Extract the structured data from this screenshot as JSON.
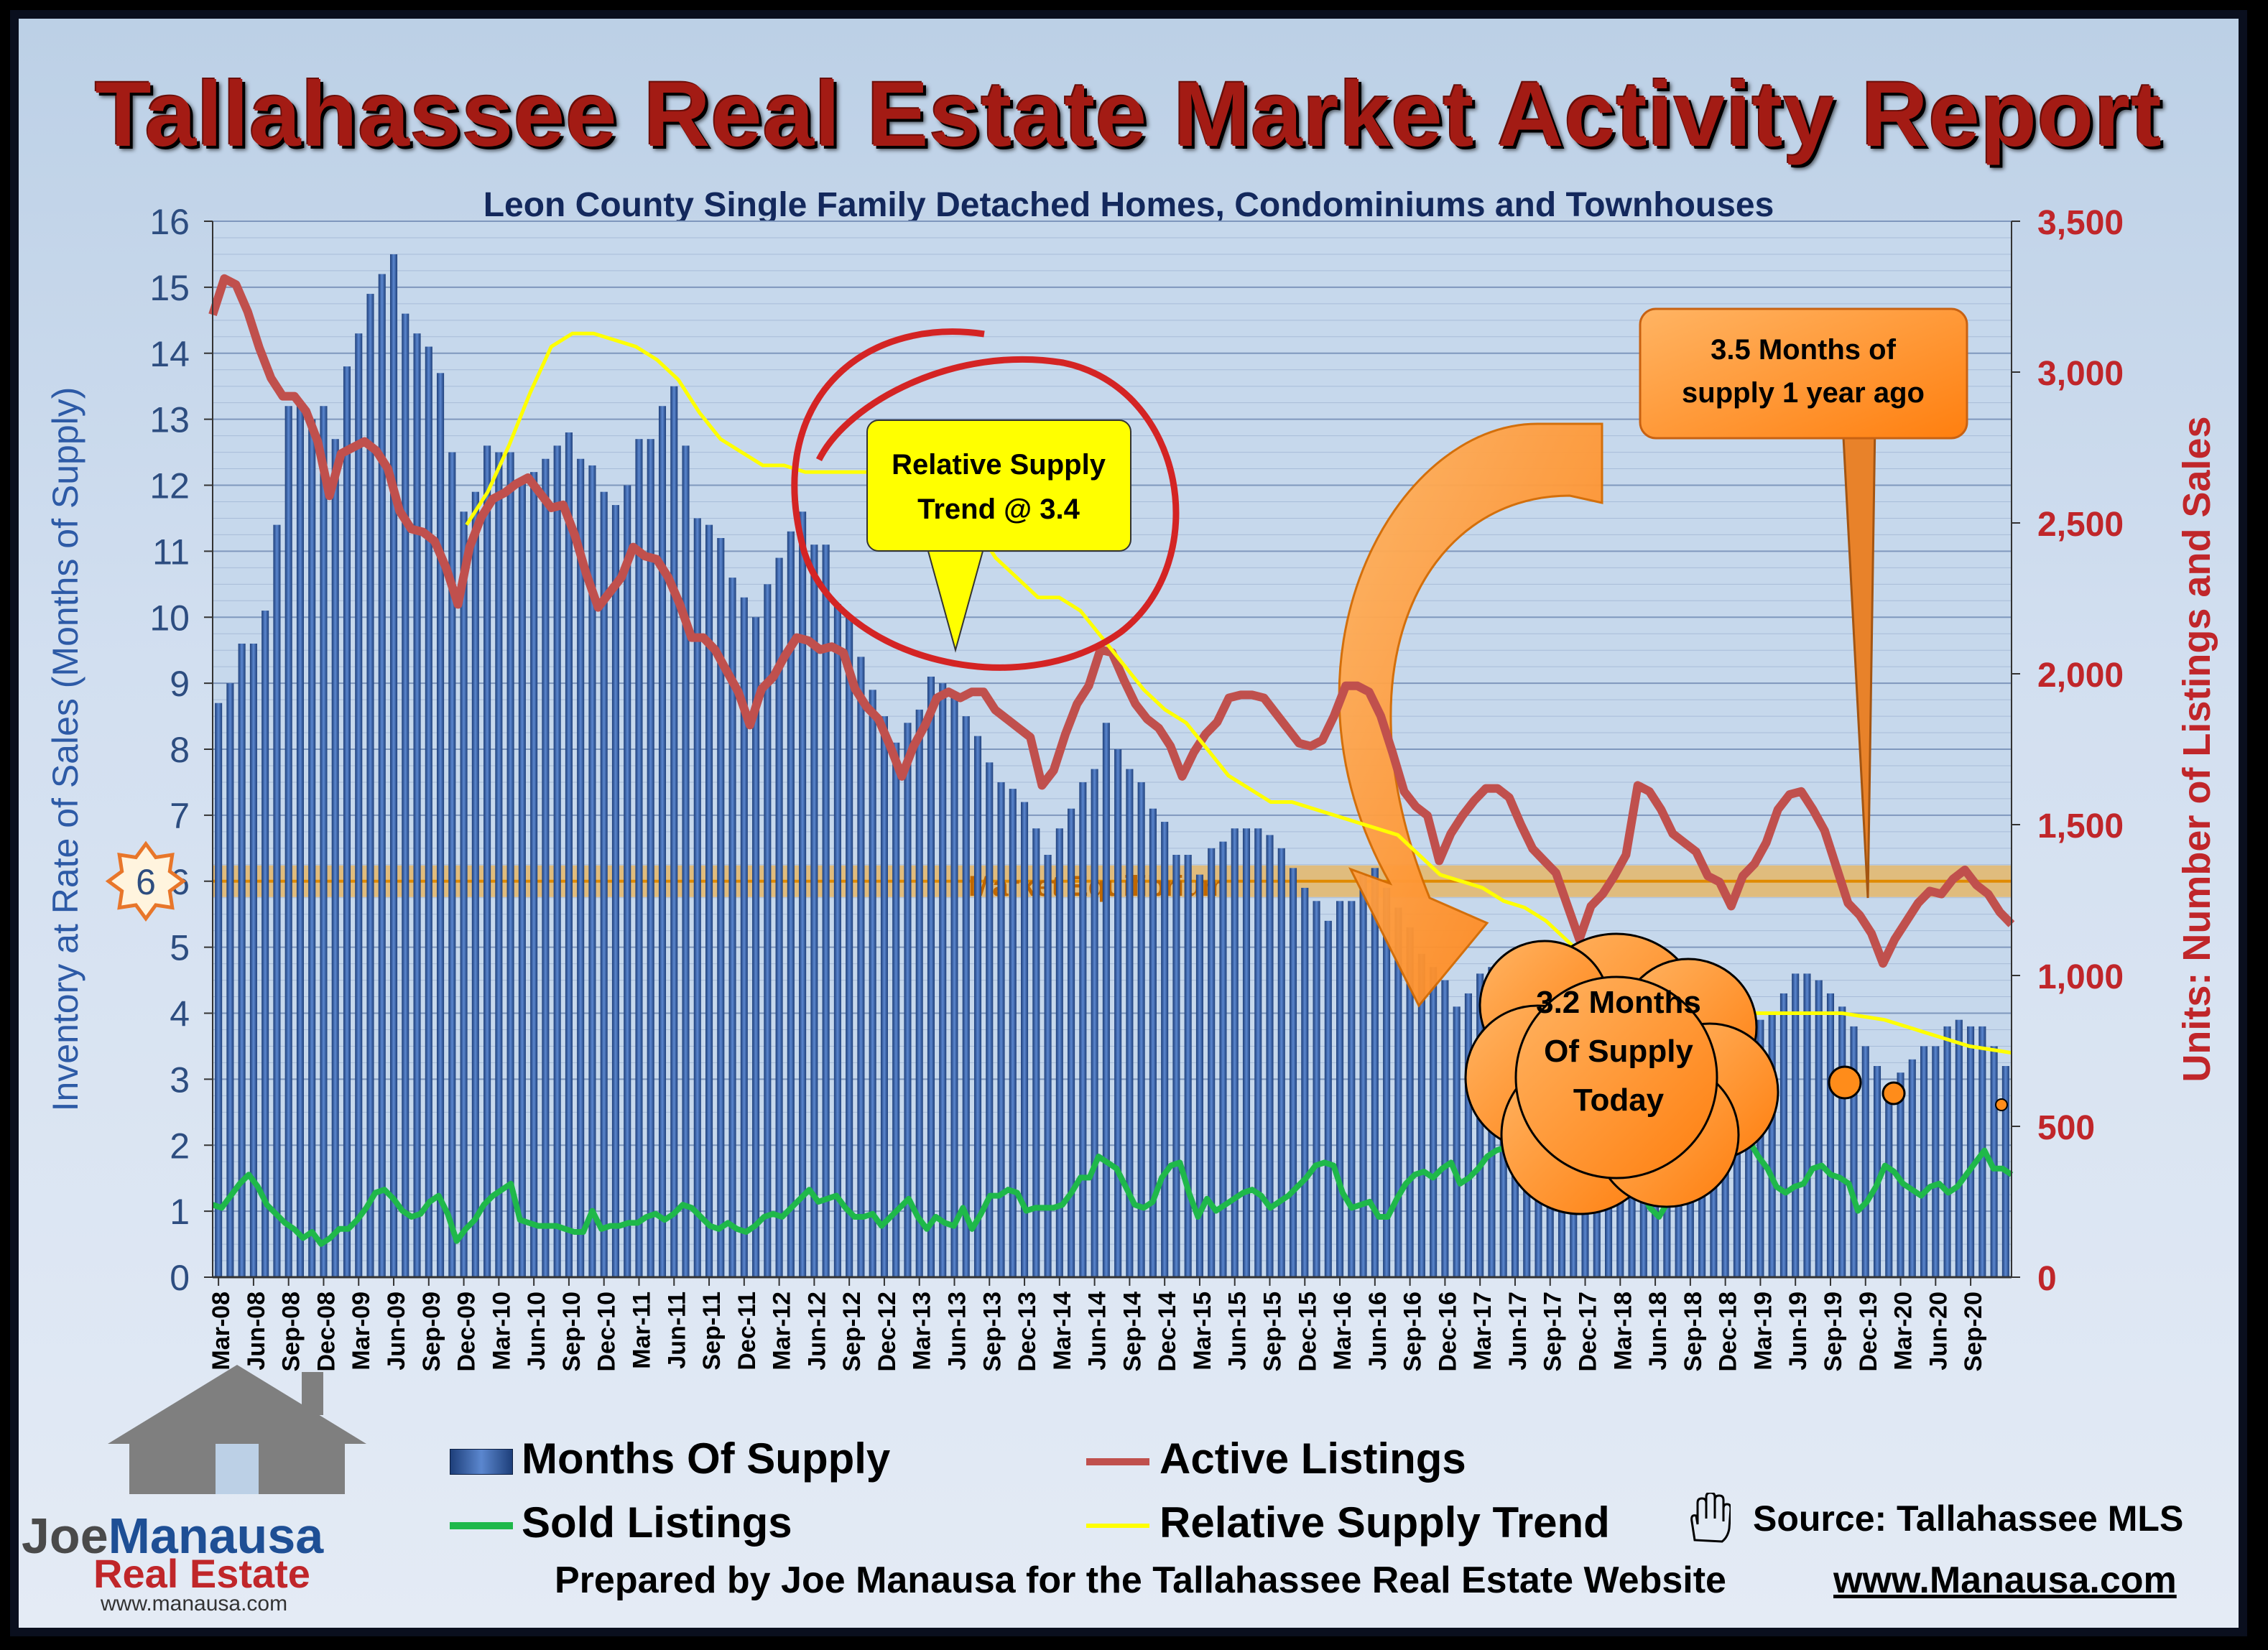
{
  "title": "Tallahassee Real Estate Market Activity Report",
  "subtitle": "Leon County Single Family Detached Homes, Condominiums and Townhouses",
  "colors": {
    "bars": "#3c6ab5",
    "active": "#c0504d",
    "sold": "#1fb84a",
    "trend": "#ffff00",
    "equilibrium": "#f5a623",
    "callout": "#ff8c1a",
    "note_bg": "#ffff00"
  },
  "chart_data": {
    "type": "bar",
    "start_month": "Mar-08",
    "x_tick_labels": [
      "Mar-08",
      "Jun-08",
      "Sep-08",
      "Dec-08",
      "Mar-09",
      "Jun-09",
      "Sep-09",
      "Dec-09",
      "Mar-10",
      "Jun-10",
      "Sep-10",
      "Dec-10",
      "Mar-11",
      "Jun-11",
      "Sep-11",
      "Dec-11",
      "Mar-12",
      "Jun-12",
      "Sep-12",
      "Dec-12",
      "Mar-13",
      "Jun-13",
      "Sep-13",
      "Dec-13",
      "Mar-14",
      "Jun-14",
      "Sep-14",
      "Dec-14",
      "Mar-15",
      "Jun-15",
      "Sep-15",
      "Dec-15",
      "Mar-16",
      "Jun-16",
      "Sep-16",
      "Dec-16",
      "Mar-17",
      "Jun-17",
      "Sep-17",
      "Dec-17",
      "Mar-18",
      "Jun-18",
      "Sep-18",
      "Dec-18",
      "Mar-19",
      "Jun-19",
      "Sep-19",
      "Dec-19",
      "Mar-20",
      "Jun-20",
      "Sep-20"
    ],
    "y_left": {
      "label": "Inventory at Rate of Sales (Months of Supply)",
      "min": 0,
      "max": 16,
      "ticks": [
        0,
        1,
        2,
        3,
        4,
        5,
        6,
        7,
        8,
        9,
        10,
        11,
        12,
        13,
        14,
        15,
        16
      ]
    },
    "y_right": {
      "label": "Units: Number of Listings and Sales",
      "min": 0,
      "max": 3500,
      "ticks": [
        "0",
        "500",
        "1,000",
        "1,500",
        "2,000",
        "2,500",
        "3,000",
        "3,500"
      ]
    },
    "grid": true,
    "series": [
      {
        "name": "Months Of Supply",
        "type": "bar",
        "axis": "left",
        "values": [
          8.7,
          9,
          9.6,
          9.6,
          10.1,
          11.4,
          13.2,
          13.2,
          13,
          13.2,
          12.7,
          13.8,
          14.3,
          14.9,
          15.2,
          15.5,
          14.6,
          14.3,
          14.1,
          13.7,
          12.5,
          11.6,
          11.9,
          12.6,
          12.5,
          12.5,
          12.1,
          12.2,
          12.4,
          12.6,
          12.8,
          12.4,
          12.3,
          11.9,
          11.7,
          12,
          12.7,
          12.7,
          13.2,
          13.5,
          12.6,
          11.5,
          11.4,
          11.2,
          10.6,
          10.3,
          10,
          10.5,
          10.9,
          11.3,
          11.6,
          11.1,
          11.1,
          10.2,
          10,
          9.4,
          8.9,
          8.5,
          8.1,
          8.4,
          8.6,
          9.1,
          9,
          8.8,
          8.5,
          8.2,
          7.8,
          7.5,
          7.4,
          7.2,
          6.8,
          6.4,
          6.8,
          7.1,
          7.5,
          7.7,
          8.4,
          8,
          7.7,
          7.5,
          7.1,
          6.9,
          6.4,
          6.4,
          6.1,
          6.5,
          6.6,
          6.8,
          6.8,
          6.8,
          6.7,
          6.5,
          6.2,
          5.9,
          5.7,
          5.4,
          5.7,
          5.7,
          6.1,
          6.2,
          5.9,
          5.6,
          5.3,
          4.9,
          4.7,
          4.5,
          4.1,
          4.3,
          4.6,
          4.7,
          4.4,
          4.5,
          4.3,
          4.3,
          4.2,
          4,
          4.2,
          4.3,
          4.1,
          3.8,
          3.9,
          4,
          4.3,
          4.5,
          4.8,
          4.5,
          4.2,
          4.3,
          4,
          4.2,
          4,
          4.1,
          3.9,
          4,
          4.3,
          4.6,
          4.6,
          4.5,
          4.3,
          4.1,
          3.8,
          3.5,
          3.2,
          2.8,
          3.1,
          3.3,
          3.5,
          3.5,
          3.8,
          3.9,
          3.8,
          3.8,
          3.5,
          3.2
        ]
      },
      {
        "name": "Active Listings",
        "type": "line",
        "axis": "right",
        "values": [
          3190,
          3310,
          3290,
          3200,
          3080,
          2980,
          2920,
          2920,
          2870,
          2770,
          2590,
          2730,
          2750,
          2770,
          2740,
          2680,
          2540,
          2480,
          2470,
          2440,
          2350,
          2230,
          2420,
          2520,
          2580,
          2600,
          2630,
          2650,
          2600,
          2550,
          2560,
          2460,
          2330,
          2220,
          2270,
          2320,
          2420,
          2390,
          2380,
          2320,
          2230,
          2120,
          2120,
          2080,
          2010,
          1940,
          1830,
          1950,
          1990,
          2060,
          2120,
          2110,
          2080,
          2090,
          2070,
          1950,
          1890,
          1850,
          1760,
          1660,
          1760,
          1830,
          1920,
          1940,
          1920,
          1940,
          1940,
          1880,
          1850,
          1820,
          1790,
          1630,
          1680,
          1800,
          1900,
          1960,
          2080,
          2070,
          1980,
          1900,
          1850,
          1820,
          1760,
          1660,
          1740,
          1800,
          1840,
          1920,
          1930,
          1930,
          1920,
          1870,
          1820,
          1770,
          1760,
          1780,
          1860,
          1960,
          1960,
          1940,
          1860,
          1740,
          1610,
          1560,
          1530,
          1380,
          1470,
          1530,
          1580,
          1620,
          1620,
          1590,
          1500,
          1420,
          1380,
          1340,
          1230,
          1120,
          1230,
          1270,
          1330,
          1400,
          1630,
          1610,
          1550,
          1470,
          1440,
          1410,
          1330,
          1310,
          1230,
          1330,
          1370,
          1440,
          1550,
          1600,
          1610,
          1550,
          1480,
          1360,
          1240,
          1200,
          1140,
          1040,
          1120,
          1180,
          1240,
          1280,
          1270,
          1320,
          1350,
          1300,
          1270,
          1210,
          1170
        ]
      },
      {
        "name": "Sold Listings",
        "type": "line",
        "axis": "right",
        "values": [
          240,
          230,
          270,
          310,
          340,
          300,
          240,
          210,
          180,
          160,
          130,
          150,
          110,
          130,
          160,
          160,
          190,
          230,
          280,
          290,
          260,
          220,
          200,
          210,
          250,
          270,
          210,
          120,
          160,
          190,
          240,
          270,
          290,
          310,
          190,
          180,
          170,
          170,
          170,
          160,
          150,
          150,
          220,
          160,
          170,
          170,
          180,
          180,
          200,
          210,
          190,
          210,
          240,
          230,
          200,
          170,
          160,
          180,
          160,
          150,
          170,
          200,
          210,
          200,
          230,
          260,
          290,
          250,
          260,
          270,
          230,
          200,
          200,
          210,
          170,
          200,
          230,
          260,
          200,
          160,
          200,
          180,
          170,
          230,
          160,
          210,
          270,
          270,
          290,
          280,
          220,
          230,
          230,
          230,
          240,
          280,
          330,
          330,
          400,
          380,
          360,
          300,
          240,
          230,
          250,
          330,
          370,
          380,
          280,
          200,
          260,
          220,
          240,
          260,
          280,
          290,
          270,
          230,
          250,
          270,
          300,
          330,
          370,
          380,
          370,
          280,
          230,
          240,
          250,
          200,
          200,
          260,
          310,
          340,
          350,
          330,
          360,
          380,
          310,
          330,
          360,
          400,
          420,
          430,
          430,
          390,
          320,
          300,
          270,
          300,
          320,
          250,
          230,
          290,
          300,
          240,
          270,
          330,
          290,
          230,
          200,
          250,
          280,
          310,
          360,
          420,
          450,
          470,
          410,
          420,
          450,
          400,
          360,
          300,
          280,
          300,
          310,
          360,
          370,
          340,
          330,
          310,
          220,
          250,
          300,
          370,
          350,
          310,
          290,
          270,
          300,
          310,
          280,
          300,
          340,
          380,
          420,
          360,
          360,
          340
        ]
      },
      {
        "name": "Relative Supply Trend",
        "type": "line",
        "axis": "left",
        "values": [
          null,
          null,
          null,
          null,
          null,
          null,
          null,
          null,
          null,
          null,
          null,
          null,
          11.4,
          11.9,
          12.6,
          13.4,
          14.1,
          14.3,
          14.3,
          14.2,
          14.1,
          13.9,
          13.6,
          13.1,
          12.7,
          12.5,
          12.3,
          12.3,
          12.2,
          12.2,
          12.2,
          12.2,
          12.3,
          12.3,
          12,
          11.8,
          11.4,
          10.9,
          10.6,
          10.3,
          10.3,
          10.1,
          9.7,
          9.3,
          8.9,
          8.6,
          8.4,
          8.0,
          7.6,
          7.4,
          7.2,
          7.2,
          7.1,
          7.0,
          6.9,
          6.8,
          6.7,
          6.4,
          6.1,
          6.0,
          5.9,
          5.7,
          5.6,
          5.4,
          5.1,
          4.8,
          4.5,
          4.3,
          4.1,
          4.0,
          4.0,
          4.0,
          4.0,
          4.0,
          4.0,
          4.0,
          4.0,
          4.0,
          3.95,
          3.9,
          3.8,
          3.7,
          3.6,
          3.5,
          3.45,
          3.4
        ]
      }
    ],
    "annotations": [
      {
        "text": "Market Equilibrium",
        "value": 6
      },
      {
        "text": "Relative Supply Trend @ 3.4"
      },
      {
        "text": "3.5 Months of supply 1 year ago"
      },
      {
        "text": "3.2 Months Of Supply Today"
      }
    ]
  },
  "badge": {
    "value": "6"
  },
  "notes": {
    "relative_l1": "Relative Supply",
    "relative_l2": "Trend @ 3.4",
    "ago_l1": "3.5 Months of",
    "ago_l2": "supply 1 year ago",
    "today_l1": "3.2 Months",
    "today_l2": "Of Supply",
    "today_l3": "Today",
    "equilibrium": "Market Equilibrium"
  },
  "legend": {
    "months": "Months Of Supply",
    "active": "Active Listings",
    "sold": "Sold Listings",
    "trend": "Relative Supply Trend"
  },
  "footer": {
    "source": "Source: Tallahassee MLS",
    "prepared": "Prepared by Joe Manausa for the Tallahassee Real Estate Website",
    "site": "www.Manausa.com"
  },
  "logo": {
    "joe": "Joe",
    "manausa": "Manausa",
    "re": "Real Estate",
    "www": "www.manausa.com"
  }
}
